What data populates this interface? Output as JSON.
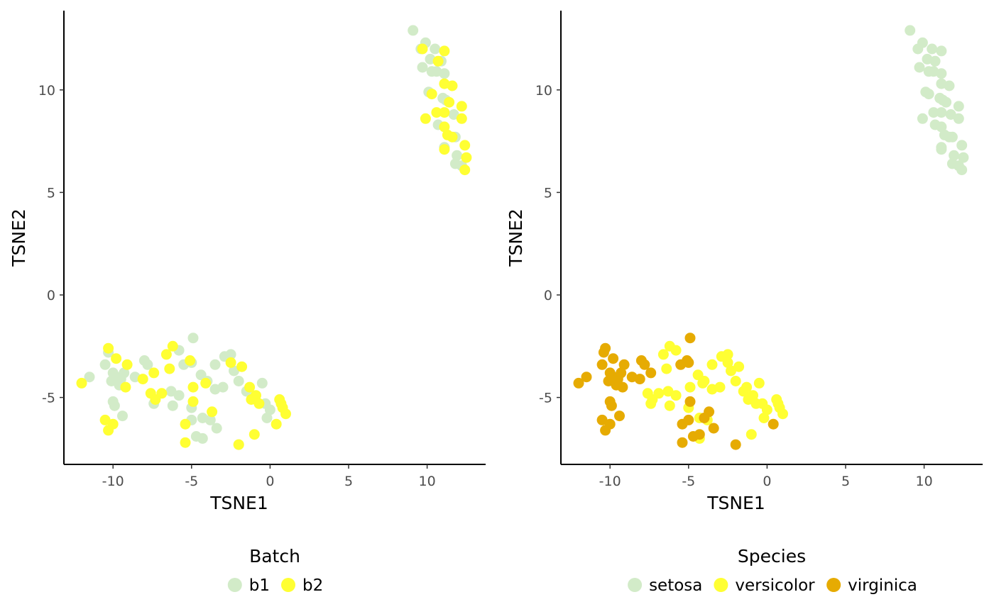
{
  "chart_data": [
    {
      "type": "scatter",
      "xlabel": "TSNE1",
      "ylabel": "TSNE2",
      "xticks": [
        "-10",
        "-5",
        "0",
        "5",
        "10"
      ],
      "yticks": [
        "-5",
        "0",
        "5",
        "10"
      ],
      "xlim": [
        -13,
        13.7
      ],
      "ylim": [
        -8.3,
        13.9
      ],
      "legend_title": "Batch",
      "legend_position": "bottom",
      "series": [
        {
          "name": "b1",
          "color": "#d2ebc8",
          "points": [
            [
              9.1,
              12.9
            ],
            [
              9.9,
              12.3
            ],
            [
              9.6,
              12.0
            ],
            [
              10.5,
              12.0
            ],
            [
              10.2,
              11.5
            ],
            [
              9.7,
              11.1
            ],
            [
              10.9,
              11.4
            ],
            [
              10.3,
              10.9
            ],
            [
              10.6,
              10.9
            ],
            [
              11.1,
              10.8
            ],
            [
              10.1,
              9.9
            ],
            [
              11.0,
              9.6
            ],
            [
              11.2,
              9.5
            ],
            [
              11.7,
              8.8
            ],
            [
              10.7,
              8.3
            ],
            [
              11.1,
              7.2
            ],
            [
              11.8,
              7.7
            ],
            [
              11.9,
              6.8
            ],
            [
              11.8,
              6.4
            ],
            [
              12.2,
              6.3
            ],
            [
              -11.5,
              -4.0
            ],
            [
              -10.5,
              -3.4
            ],
            [
              -10.3,
              -2.8
            ],
            [
              -10.1,
              -4.2
            ],
            [
              -10.0,
              -3.8
            ],
            [
              -9.8,
              -4.0
            ],
            [
              -9.6,
              -4.4
            ],
            [
              -9.5,
              -4.1
            ],
            [
              -9.3,
              -3.8
            ],
            [
              -10.0,
              -5.2
            ],
            [
              -9.9,
              -5.4
            ],
            [
              -9.4,
              -5.9
            ],
            [
              -8.6,
              -4.0
            ],
            [
              -8.0,
              -3.2
            ],
            [
              -7.8,
              -3.4
            ],
            [
              -7.4,
              -5.3
            ],
            [
              -5.8,
              -2.7
            ],
            [
              -4.9,
              -2.1
            ],
            [
              -5.0,
              -3.3
            ],
            [
              -5.5,
              -3.4
            ],
            [
              -4.4,
              -3.9
            ],
            [
              -4.0,
              -4.2
            ],
            [
              -3.5,
              -3.4
            ],
            [
              -3.5,
              -4.6
            ],
            [
              -3.0,
              -4.5
            ],
            [
              -2.9,
              -3.0
            ],
            [
              -2.5,
              -2.9
            ],
            [
              -2.3,
              -3.7
            ],
            [
              -2.0,
              -4.2
            ],
            [
              -1.5,
              -4.7
            ],
            [
              -0.5,
              -4.3
            ],
            [
              -0.3,
              -5.3
            ],
            [
              0.0,
              -5.6
            ],
            [
              -0.2,
              -6.0
            ],
            [
              -6.3,
              -4.7
            ],
            [
              -6.2,
              -5.4
            ],
            [
              -5.8,
              -4.9
            ],
            [
              -5.0,
              -5.5
            ],
            [
              -5.0,
              -6.1
            ],
            [
              -4.7,
              -6.9
            ],
            [
              -4.3,
              -7.0
            ],
            [
              -4.3,
              -6.0
            ],
            [
              -3.8,
              -6.1
            ],
            [
              -3.4,
              -6.5
            ],
            [
              -2.0,
              -7.3
            ]
          ]
        },
        {
          "name": "b2",
          "color": "#ffff33",
          "points": [
            [
              9.7,
              12.0
            ],
            [
              11.1,
              11.9
            ],
            [
              10.7,
              11.4
            ],
            [
              11.1,
              10.3
            ],
            [
              11.6,
              10.2
            ],
            [
              10.3,
              9.8
            ],
            [
              11.4,
              9.4
            ],
            [
              12.2,
              9.2
            ],
            [
              10.6,
              8.9
            ],
            [
              11.1,
              8.9
            ],
            [
              9.9,
              8.6
            ],
            [
              12.2,
              8.6
            ],
            [
              11.1,
              8.2
            ],
            [
              11.3,
              7.8
            ],
            [
              11.6,
              7.7
            ],
            [
              12.4,
              7.3
            ],
            [
              11.1,
              7.1
            ],
            [
              12.5,
              6.7
            ],
            [
              12.4,
              6.1
            ],
            [
              -12.0,
              -4.3
            ],
            [
              -10.3,
              -2.6
            ],
            [
              -9.8,
              -3.1
            ],
            [
              -9.1,
              -3.4
            ],
            [
              -9.2,
              -4.5
            ],
            [
              -8.1,
              -4.1
            ],
            [
              -7.6,
              -4.8
            ],
            [
              -7.4,
              -3.8
            ],
            [
              -7.3,
              -5.1
            ],
            [
              -6.9,
              -4.8
            ],
            [
              -6.6,
              -2.9
            ],
            [
              -6.4,
              -3.6
            ],
            [
              -6.2,
              -2.5
            ],
            [
              -5.1,
              -3.2
            ],
            [
              -4.9,
              -4.5
            ],
            [
              -4.9,
              -5.2
            ],
            [
              -4.1,
              -4.3
            ],
            [
              -2.5,
              -3.3
            ],
            [
              -1.8,
              -3.5
            ],
            [
              -1.3,
              -4.5
            ],
            [
              -1.2,
              -5.1
            ],
            [
              -0.9,
              -4.9
            ],
            [
              -0.7,
              -5.3
            ],
            [
              0.6,
              -5.1
            ],
            [
              0.7,
              -5.3
            ],
            [
              0.8,
              -5.5
            ],
            [
              1.0,
              -5.8
            ],
            [
              0.4,
              -6.3
            ],
            [
              -10.5,
              -6.1
            ],
            [
              -10.3,
              -6.6
            ],
            [
              -10.0,
              -6.3
            ],
            [
              -5.4,
              -6.3
            ],
            [
              -5.4,
              -7.2
            ],
            [
              -3.7,
              -5.7
            ],
            [
              -2.0,
              -7.3
            ],
            [
              -1.0,
              -6.8
            ]
          ]
        }
      ]
    },
    {
      "type": "scatter",
      "xlabel": "TSNE1",
      "ylabel": "TSNE2",
      "xticks": [
        "-10",
        "-5",
        "0",
        "5",
        "10"
      ],
      "yticks": [
        "-5",
        "0",
        "5",
        "10"
      ],
      "xlim": [
        -13,
        13.7
      ],
      "ylim": [
        -8.3,
        13.9
      ],
      "legend_title": "Species",
      "legend_position": "bottom",
      "series": [
        {
          "name": "setosa",
          "color": "#d2ebc8",
          "points": [
            [
              9.1,
              12.9
            ],
            [
              9.9,
              12.3
            ],
            [
              9.6,
              12.0
            ],
            [
              10.5,
              12.0
            ],
            [
              11.1,
              11.9
            ],
            [
              10.2,
              11.5
            ],
            [
              10.7,
              11.4
            ],
            [
              9.7,
              11.1
            ],
            [
              10.3,
              10.9
            ],
            [
              10.6,
              10.9
            ],
            [
              11.1,
              10.8
            ],
            [
              11.1,
              10.3
            ],
            [
              11.6,
              10.2
            ],
            [
              10.1,
              9.9
            ],
            [
              10.3,
              9.8
            ],
            [
              11.0,
              9.6
            ],
            [
              11.2,
              9.5
            ],
            [
              11.4,
              9.4
            ],
            [
              12.2,
              9.2
            ],
            [
              10.6,
              8.9
            ],
            [
              11.1,
              8.9
            ],
            [
              11.7,
              8.8
            ],
            [
              9.9,
              8.6
            ],
            [
              12.2,
              8.6
            ],
            [
              10.7,
              8.3
            ],
            [
              11.1,
              8.2
            ],
            [
              11.3,
              7.8
            ],
            [
              11.6,
              7.7
            ],
            [
              11.8,
              7.7
            ],
            [
              12.4,
              7.3
            ],
            [
              11.1,
              7.2
            ],
            [
              11.1,
              7.1
            ],
            [
              11.9,
              6.8
            ],
            [
              12.5,
              6.7
            ],
            [
              11.8,
              6.4
            ],
            [
              12.2,
              6.3
            ],
            [
              12.4,
              6.1
            ]
          ]
        },
        {
          "name": "versicolor",
          "color": "#ffff33",
          "points": [
            [
              -7.6,
              -4.8
            ],
            [
              -7.4,
              -5.3
            ],
            [
              -7.3,
              -5.1
            ],
            [
              -6.9,
              -4.8
            ],
            [
              -6.6,
              -2.9
            ],
            [
              -6.4,
              -3.6
            ],
            [
              -6.2,
              -2.5
            ],
            [
              -6.3,
              -4.7
            ],
            [
              -6.2,
              -5.4
            ],
            [
              -5.8,
              -2.7
            ],
            [
              -5.8,
              -4.9
            ],
            [
              -5.0,
              -5.5
            ],
            [
              -4.9,
              -4.5
            ],
            [
              -4.4,
              -3.9
            ],
            [
              -4.3,
              -6.0
            ],
            [
              -4.1,
              -4.3
            ],
            [
              -4.0,
              -4.2
            ],
            [
              -3.8,
              -6.1
            ],
            [
              -3.5,
              -3.4
            ],
            [
              -3.5,
              -4.6
            ],
            [
              -3.0,
              -4.5
            ],
            [
              -2.9,
              -3.0
            ],
            [
              -2.5,
              -2.9
            ],
            [
              -2.5,
              -3.3
            ],
            [
              -2.3,
              -3.7
            ],
            [
              -2.0,
              -4.2
            ],
            [
              -1.8,
              -3.5
            ],
            [
              -1.5,
              -4.7
            ],
            [
              -1.3,
              -4.5
            ],
            [
              -1.2,
              -5.1
            ],
            [
              -0.9,
              -4.9
            ],
            [
              -0.7,
              -5.3
            ],
            [
              -0.5,
              -4.3
            ],
            [
              -0.3,
              -5.3
            ],
            [
              0.0,
              -5.6
            ],
            [
              -0.2,
              -6.0
            ],
            [
              0.6,
              -5.1
            ],
            [
              0.7,
              -5.3
            ],
            [
              0.8,
              -5.5
            ],
            [
              1.0,
              -5.8
            ],
            [
              -4.3,
              -7.0
            ],
            [
              -1.0,
              -6.8
            ]
          ]
        },
        {
          "name": "virginica",
          "color": "#e6ab02",
          "points": [
            [
              -12.0,
              -4.3
            ],
            [
              -11.5,
              -4.0
            ],
            [
              -10.5,
              -3.4
            ],
            [
              -10.4,
              -2.8
            ],
            [
              -10.3,
              -2.6
            ],
            [
              -10.1,
              -4.2
            ],
            [
              -10.0,
              -3.8
            ],
            [
              -9.8,
              -4.0
            ],
            [
              -9.8,
              -3.1
            ],
            [
              -9.6,
              -4.4
            ],
            [
              -9.5,
              -4.1
            ],
            [
              -9.3,
              -3.8
            ],
            [
              -9.2,
              -4.5
            ],
            [
              -9.1,
              -3.4
            ],
            [
              -10.0,
              -5.2
            ],
            [
              -9.9,
              -5.4
            ],
            [
              -9.4,
              -5.9
            ],
            [
              -8.6,
              -4.0
            ],
            [
              -8.1,
              -4.1
            ],
            [
              -8.0,
              -3.2
            ],
            [
              -7.8,
              -3.4
            ],
            [
              -7.4,
              -3.8
            ],
            [
              -10.5,
              -6.1
            ],
            [
              -10.3,
              -6.6
            ],
            [
              -10.0,
              -6.3
            ],
            [
              -5.4,
              -6.3
            ],
            [
              -5.4,
              -7.2
            ],
            [
              -5.0,
              -6.1
            ],
            [
              -4.7,
              -6.9
            ],
            [
              -4.3,
              -6.8
            ],
            [
              -3.7,
              -5.7
            ],
            [
              -3.4,
              -6.5
            ],
            [
              -4.9,
              -2.1
            ],
            [
              -5.0,
              -3.3
            ],
            [
              -5.5,
              -3.4
            ],
            [
              -5.1,
              -3.2
            ],
            [
              -4.9,
              -5.2
            ],
            [
              -2.0,
              -7.3
            ],
            [
              0.4,
              -6.3
            ],
            [
              -4.0,
              -6.0
            ]
          ]
        }
      ]
    }
  ]
}
